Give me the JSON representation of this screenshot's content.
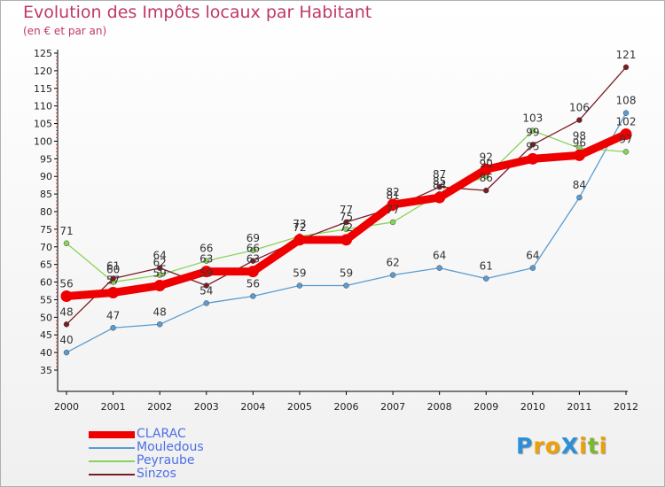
{
  "title": "Evolution des Impôts locaux par Habitant",
  "subtitle": "(en € et par an)",
  "logo": {
    "text": "ProXiti",
    "letters": [
      {
        "char": "P",
        "color": "#2b8fd9"
      },
      {
        "char": "r",
        "color": "#f0a000"
      },
      {
        "char": "o",
        "color": "#f0a000"
      },
      {
        "char": "X",
        "color": "#2b8fd9"
      },
      {
        "char": "i",
        "color": "#f0a000"
      },
      {
        "char": "t",
        "color": "#7ab82e"
      },
      {
        "char": "i",
        "color": "#f0a000"
      }
    ]
  },
  "chart_data": {
    "type": "line",
    "title": "Evolution des Impôts locaux par Habitant",
    "subtitle": "(en € et par an)",
    "xlabel": "",
    "ylabel": "",
    "ylim": [
      35,
      125
    ],
    "ytick_step": 5,
    "x": [
      "2000",
      "2001",
      "2002",
      "2003",
      "2004",
      "2005",
      "2006",
      "2007",
      "2008",
      "2009",
      "2010",
      "2011",
      "2012"
    ],
    "grid": false,
    "legend_position": "bottom-left",
    "series": [
      {
        "name": "CLARAC",
        "color": "#ee0000",
        "values": [
          56,
          57,
          59,
          63,
          63,
          72,
          72,
          82,
          84,
          92,
          95,
          96,
          102
        ],
        "labels": [
          "56",
          "57",
          "59",
          "63",
          "63",
          "72",
          "72",
          "82",
          "84",
          "92",
          "95",
          "96",
          "102"
        ]
      },
      {
        "name": "Mouledous",
        "label": "Mouledous",
        "color": "#5b9bd0",
        "values": [
          40,
          47,
          48,
          54,
          56,
          59,
          59,
          62,
          64,
          61,
          64,
          84,
          108
        ],
        "labels": [
          "40",
          "47",
          "48",
          "54",
          "56",
          "59",
          "59",
          "62",
          "64",
          "61",
          "64",
          "84",
          "108"
        ]
      },
      {
        "name": "Peyraube",
        "color": "#88d45a",
        "values": [
          71,
          60,
          62,
          66,
          69,
          73,
          75,
          77,
          85,
          90,
          103,
          98,
          97
        ],
        "labels": [
          "71",
          "60",
          "62",
          "66",
          "69",
          "73",
          "75",
          "77",
          "85",
          "90",
          "103",
          "98",
          "97"
        ]
      },
      {
        "name": "Sinzos",
        "color": "#7a1c24",
        "values": [
          48,
          61,
          64,
          59,
          66,
          72,
          77,
          81,
          87,
          86,
          99,
          106,
          121
        ],
        "labels": [
          "48",
          "61",
          "64",
          "59",
          "66",
          "72",
          "77",
          "81",
          "87",
          "86",
          "99",
          "106",
          "121"
        ]
      }
    ],
    "legend_labels": [
      "CLARAC",
      "Mouledous",
      "Peyraube",
      "Sinzos"
    ]
  }
}
